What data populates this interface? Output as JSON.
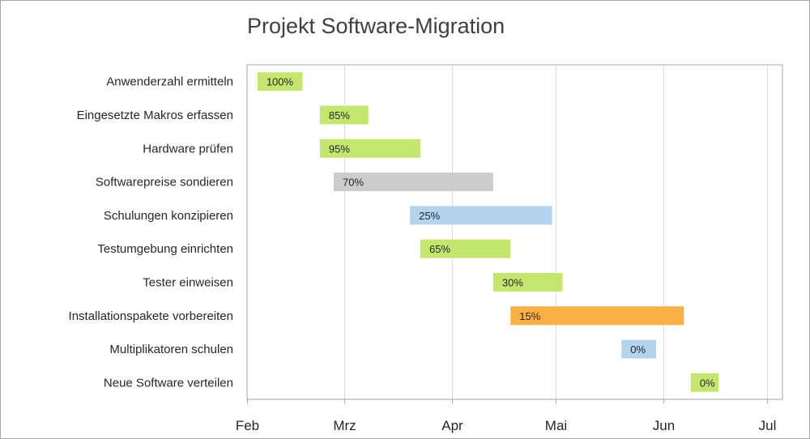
{
  "chart_data": {
    "type": "bar",
    "title": "Projekt Software-Migration",
    "xlabel": "",
    "ylabel": "",
    "x_ticks": [
      "Feb",
      "Mrz",
      "Apr",
      "Mai",
      "Jun",
      "Jul"
    ],
    "x_tick_dates": [
      "2019-02-01",
      "2019-03-01",
      "2019-04-01",
      "2019-05-01",
      "2019-06-01",
      "2019-07-01"
    ],
    "xlim": [
      "2019-02-01",
      "2019-07-01"
    ],
    "grid": true,
    "legend": "none",
    "tasks": [
      {
        "name": "Anwenderzahl ermitteln",
        "start": "2019-02-04",
        "end": "2019-02-17",
        "progress": "100%",
        "color": "#c5e66e"
      },
      {
        "name": "Eingesetzte Makros erfassen",
        "start": "2019-02-22",
        "end": "2019-03-08",
        "progress": "85%",
        "color": "#c5e66e"
      },
      {
        "name": "Hardware prüfen",
        "start": "2019-02-22",
        "end": "2019-03-23",
        "progress": "95%",
        "color": "#c5e66e"
      },
      {
        "name": "Softwarepreise sondieren",
        "start": "2019-02-26",
        "end": "2019-04-13",
        "progress": "70%",
        "color": "#cccccc"
      },
      {
        "name": "Schulungen konzipieren",
        "start": "2019-03-20",
        "end": "2019-04-30",
        "progress": "25%",
        "color": "#b4d4ee"
      },
      {
        "name": "Testumgebung einrichten",
        "start": "2019-03-23",
        "end": "2019-04-18",
        "progress": "65%",
        "color": "#c5e66e"
      },
      {
        "name": "Tester einweisen",
        "start": "2019-04-13",
        "end": "2019-05-03",
        "progress": "30%",
        "color": "#c5e66e"
      },
      {
        "name": "Installationspakete vorbereiten",
        "start": "2019-04-18",
        "end": "2019-06-07",
        "progress": "15%",
        "color": "#fbaf47"
      },
      {
        "name": "Multiplikatoren schulen",
        "start": "2019-05-20",
        "end": "2019-05-30",
        "progress": "0%",
        "color": "#b4d4ee"
      },
      {
        "name": "Neue Software verteilen",
        "start": "2019-06-09",
        "end": "2019-06-17",
        "progress": "0%",
        "color": "#c5e66e"
      }
    ]
  }
}
